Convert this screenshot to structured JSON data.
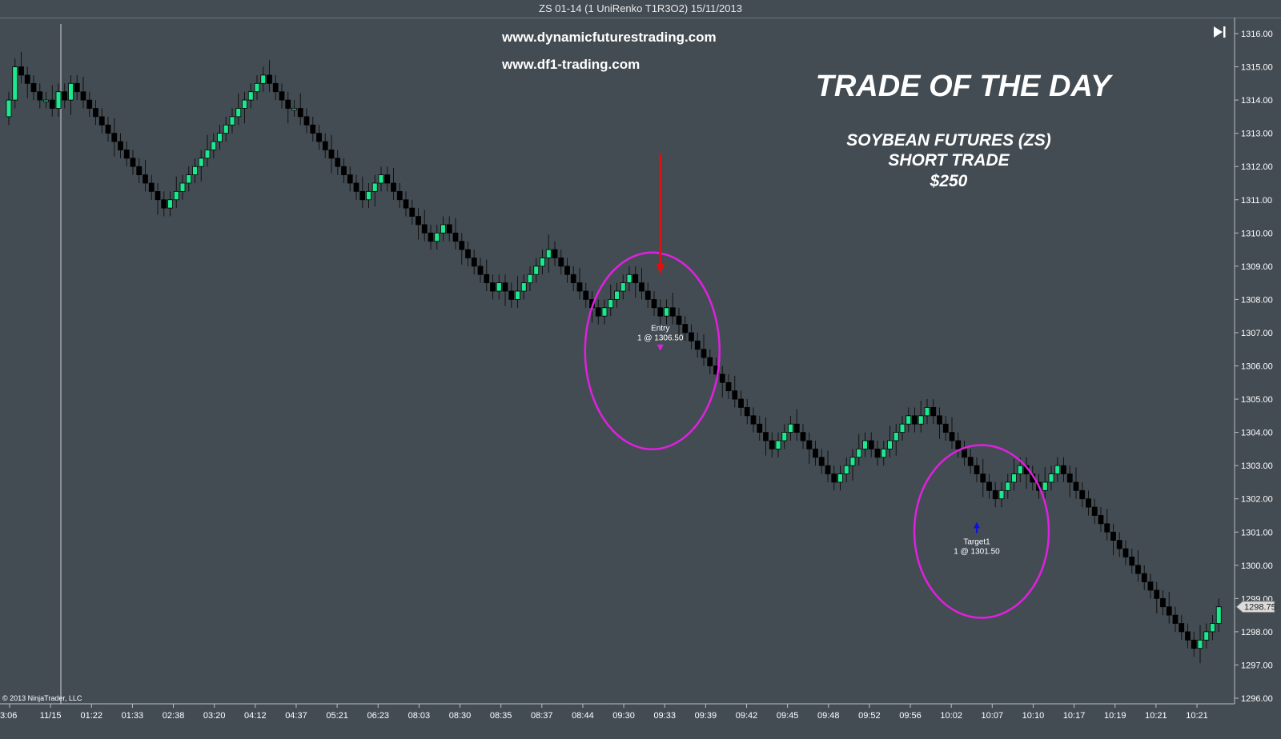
{
  "window": {
    "title": "ZS 01-14 (1 UniRenko T1R3O2)  15/11/2013"
  },
  "overlay": {
    "url1": "www.dynamicfuturestrading.com",
    "url2": "www.df1-trading.com",
    "headline": "TRADE OF THE DAY",
    "sub1": "SOYBEAN FUTURES (ZS)",
    "sub2": "SHORT TRADE",
    "sub3": "$250",
    "copyright": "© 2013 NinjaTrader, LLC"
  },
  "colors": {
    "background": "#434c53",
    "up_candle": "#1de88e",
    "down_candle": "#000000",
    "ellipse": "#e020e0",
    "entry_arrow": "#e01010",
    "target_arrow": "#1010e0"
  },
  "icons": {
    "scroll_end": "skip-to-end-icon"
  },
  "chart_data": {
    "type": "candlestick",
    "instrument": "ZS 01-14",
    "bar_type": "1 UniRenko T1R3O2",
    "date": "15/11/2013",
    "ylim": [
      1296.0,
      1316.0
    ],
    "y_ticks": [
      "1316.00",
      "1315.00",
      "1314.00",
      "1313.00",
      "1312.00",
      "1311.00",
      "1310.00",
      "1309.00",
      "1308.00",
      "1307.00",
      "1306.00",
      "1305.00",
      "1304.00",
      "1303.00",
      "1302.00",
      "1301.00",
      "1300.00",
      "1299.00",
      "1298.00",
      "1297.00",
      "1296.00"
    ],
    "x_tick_labels": [
      "3:06",
      "11/15",
      "01:22",
      "01:33",
      "02:38",
      "03:20",
      "04:12",
      "04:37",
      "05:21",
      "06:23",
      "08:03",
      "08:30",
      "08:35",
      "08:37",
      "08:44",
      "09:30",
      "09:33",
      "09:39",
      "09:42",
      "09:45",
      "09:48",
      "09:52",
      "09:56",
      "10:02",
      "10:07",
      "10:10",
      "10:17",
      "10:19",
      "10:21",
      "10:21"
    ],
    "last_price": "1298.75",
    "session_break_label": "11/15",
    "closes": [
      1314.0,
      1315.0,
      1314.75,
      1314.5,
      1314.25,
      1314.0,
      1314.0,
      1313.75,
      1314.25,
      1314.0,
      1314.5,
      1314.25,
      1314.0,
      1313.75,
      1313.5,
      1313.25,
      1313.0,
      1312.75,
      1312.5,
      1312.25,
      1312.0,
      1311.75,
      1311.5,
      1311.25,
      1311.0,
      1310.75,
      1311.0,
      1311.25,
      1311.5,
      1311.75,
      1312.0,
      1312.25,
      1312.5,
      1312.75,
      1313.0,
      1313.25,
      1313.5,
      1313.75,
      1314.0,
      1314.25,
      1314.5,
      1314.75,
      1314.5,
      1314.25,
      1314.0,
      1313.75,
      1313.75,
      1313.5,
      1313.25,
      1313.0,
      1312.75,
      1312.5,
      1312.25,
      1312.0,
      1311.75,
      1311.5,
      1311.25,
      1311.0,
      1311.25,
      1311.5,
      1311.75,
      1311.5,
      1311.25,
      1311.0,
      1310.75,
      1310.5,
      1310.25,
      1310.0,
      1309.75,
      1310.0,
      1310.25,
      1310.0,
      1309.75,
      1309.5,
      1309.25,
      1309.0,
      1308.75,
      1308.5,
      1308.25,
      1308.5,
      1308.25,
      1308.0,
      1308.25,
      1308.5,
      1308.75,
      1309.0,
      1309.25,
      1309.5,
      1309.25,
      1309.0,
      1308.75,
      1308.5,
      1308.25,
      1308.0,
      1307.75,
      1307.5,
      1307.75,
      1308.0,
      1308.25,
      1308.5,
      1308.75,
      1308.5,
      1308.25,
      1308.0,
      1307.75,
      1307.5,
      1307.75,
      1307.5,
      1307.25,
      1307.0,
      1306.75,
      1306.5,
      1306.25,
      1306.0,
      1305.75,
      1305.5,
      1305.25,
      1305.0,
      1304.75,
      1304.5,
      1304.25,
      1304.0,
      1303.75,
      1303.5,
      1303.75,
      1304.0,
      1304.25,
      1304.0,
      1303.75,
      1303.5,
      1303.25,
      1303.0,
      1302.75,
      1302.5,
      1302.75,
      1303.0,
      1303.25,
      1303.5,
      1303.75,
      1303.5,
      1303.25,
      1303.5,
      1303.75,
      1304.0,
      1304.25,
      1304.5,
      1304.25,
      1304.5,
      1304.75,
      1304.5,
      1304.25,
      1304.0,
      1303.75,
      1303.5,
      1303.25,
      1303.0,
      1302.75,
      1302.5,
      1302.25,
      1302.0,
      1302.25,
      1302.5,
      1302.75,
      1303.0,
      1302.75,
      1302.5,
      1302.25,
      1302.5,
      1302.75,
      1303.0,
      1302.75,
      1302.5,
      1302.25,
      1302.0,
      1301.75,
      1301.5,
      1301.25,
      1301.0,
      1300.75,
      1300.5,
      1300.25,
      1300.0,
      1299.75,
      1299.5,
      1299.25,
      1299.0,
      1298.75,
      1298.5,
      1298.25,
      1298.0,
      1297.75,
      1297.5,
      1297.75,
      1298.0,
      1298.25,
      1298.75
    ],
    "annotations": [
      {
        "type": "entry",
        "label": "Entry",
        "detail": "1 @ 1306.50",
        "price": 1306.5,
        "bar": 105
      },
      {
        "type": "target",
        "label": "Target1",
        "detail": "1 @ 1301.50",
        "price": 1301.5,
        "bar": 156
      }
    ],
    "grid": false
  }
}
